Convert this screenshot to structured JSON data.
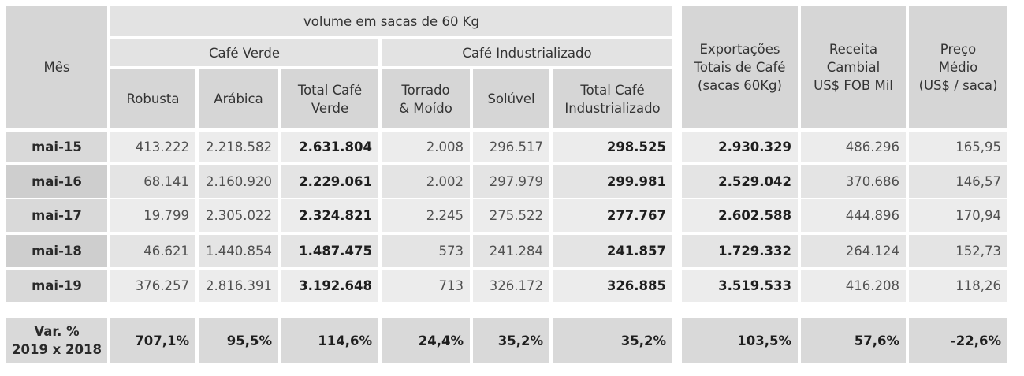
{
  "header": {
    "mes": "Mês",
    "volume": "volume em sacas de 60 Kg",
    "cafe_verde": "Café Verde",
    "cafe_industrializado": "Café Industrializado",
    "robusta": "Robusta",
    "arabica": "Arábica",
    "total_verde_l1": "Total Café",
    "total_verde_l2": "Verde",
    "torrado_l1": "Torrado",
    "torrado_l2": "& Moído",
    "soluvel": "Solúvel",
    "total_ind_l1": "Total Café",
    "total_ind_l2": "Industrializado",
    "export_l1": "Exportações",
    "export_l2": "Totais de Café",
    "export_l3": "(sacas 60Kg)",
    "receita_l1": "Receita",
    "receita_l2": "Cambial",
    "receita_l3": "US$ FOB Mil",
    "preco_l1": "Preço",
    "preco_l2": "Médio",
    "preco_l3": "(US$ / saca)"
  },
  "rows": [
    {
      "mes": "mai-15",
      "robusta": "413.222",
      "arabica": "2.218.582",
      "total_verde": "2.631.804",
      "torrado": "2.008",
      "soluvel": "296.517",
      "total_ind": "298.525",
      "export": "2.930.329",
      "receita": "486.296",
      "preco": "165,95"
    },
    {
      "mes": "mai-16",
      "robusta": "68.141",
      "arabica": "2.160.920",
      "total_verde": "2.229.061",
      "torrado": "2.002",
      "soluvel": "297.979",
      "total_ind": "299.981",
      "export": "2.529.042",
      "receita": "370.686",
      "preco": "146,57"
    },
    {
      "mes": "mai-17",
      "robusta": "19.799",
      "arabica": "2.305.022",
      "total_verde": "2.324.821",
      "torrado": "2.245",
      "soluvel": "275.522",
      "total_ind": "277.767",
      "export": "2.602.588",
      "receita": "444.896",
      "preco": "170,94"
    },
    {
      "mes": "mai-18",
      "robusta": "46.621",
      "arabica": "1.440.854",
      "total_verde": "1.487.475",
      "torrado": "573",
      "soluvel": "241.284",
      "total_ind": "241.857",
      "export": "1.729.332",
      "receita": "264.124",
      "preco": "152,73"
    },
    {
      "mes": "mai-19",
      "robusta": "376.257",
      "arabica": "2.816.391",
      "total_verde": "3.192.648",
      "torrado": "713",
      "soluvel": "326.172",
      "total_ind": "326.885",
      "export": "3.519.533",
      "receita": "416.208",
      "preco": "118,26"
    }
  ],
  "summary": {
    "label_l1": "Var. %",
    "label_l2": "2019 x 2018",
    "robusta": "707,1%",
    "arabica": "95,5%",
    "total_verde": "114,6%",
    "torrado": "24,4%",
    "soluvel": "35,2%",
    "total_ind": "35,2%",
    "export": "103,5%",
    "receita": "57,6%",
    "preco": "-22,6%"
  }
}
